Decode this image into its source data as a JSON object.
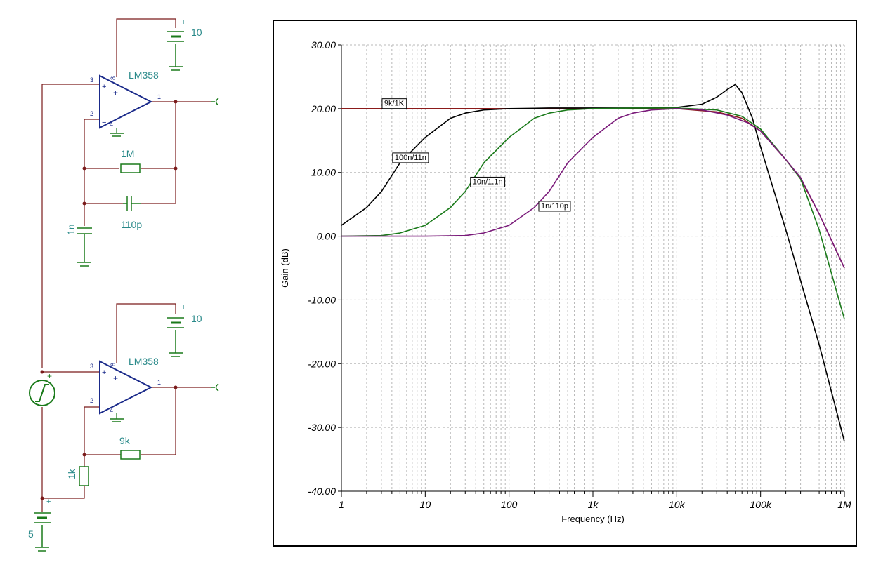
{
  "schematic": {
    "top_opamp": {
      "part": "LM358",
      "pins": [
        "3",
        "2",
        "8",
        "4",
        "1"
      ]
    },
    "top_supply": "10",
    "feedback_resistor": "1M",
    "feedback_capacitor": "110p",
    "ground_capacitor": "1n",
    "bottom_opamp": {
      "part": "LM358",
      "pins": [
        "3",
        "2",
        "8",
        "4",
        "1"
      ]
    },
    "bottom_supply": "10",
    "feedback_resistor_2": "9k",
    "ground_resistor": "1k",
    "bias_supply": "5",
    "plus_sign": "+"
  },
  "colors": {
    "wire": "#7a1a1a",
    "component": "#1a7a1a",
    "opamp": "#1a2a8a",
    "label": "#2a8a8a",
    "series_9k": "#8b1a1a",
    "series_100n": "#000000",
    "series_10n": "#1a7a1a",
    "series_1n": "#7a1a7a"
  },
  "chart_data": {
    "type": "line",
    "xlabel": "Frequency (Hz)",
    "ylabel": "Gain (dB)",
    "x_scale": "log",
    "xlim": [
      1,
      1000000
    ],
    "ylim": [
      -40,
      30
    ],
    "grid": true,
    "x_ticks": [
      1,
      10,
      100,
      1000,
      10000,
      100000,
      1000000
    ],
    "x_tick_labels": [
      "1",
      "10",
      "100",
      "1k",
      "10k",
      "100k",
      "1M"
    ],
    "y_ticks": [
      30,
      20,
      10,
      0,
      -10,
      -20,
      -30,
      -40
    ],
    "y_tick_labels": [
      "30.00",
      "20.00",
      "10.00",
      "0.00",
      "-10.00",
      "-20.00",
      "-30.00",
      "-40.00"
    ],
    "series": [
      {
        "name": "9k/1K",
        "color": "#8b1a1a",
        "x": [
          1,
          10,
          100,
          1000,
          10000,
          30000,
          60000,
          100000,
          200000,
          300000,
          500000,
          1000000
        ],
        "y": [
          20,
          20,
          20,
          20,
          20,
          19.5,
          18.5,
          16.5,
          12,
          9,
          3.5,
          -5
        ]
      },
      {
        "name": "100n/11n",
        "color": "#000000",
        "x": [
          1,
          2,
          3,
          5,
          10,
          20,
          30,
          50,
          100,
          300,
          1000,
          5000,
          10000,
          20000,
          30000,
          40000,
          50000,
          60000,
          80000,
          100000,
          200000,
          500000,
          1000000
        ],
        "y": [
          1.7,
          4.5,
          7,
          11.5,
          15.5,
          18.5,
          19.3,
          19.8,
          20,
          20.1,
          20.1,
          20.1,
          20.2,
          20.7,
          21.8,
          23,
          23.8,
          22.5,
          18.5,
          14,
          1,
          -17,
          -32.2
        ]
      },
      {
        "name": "10n/1,1n",
        "color": "#1a7a1a",
        "x": [
          1,
          3,
          5,
          10,
          20,
          30,
          50,
          100,
          200,
          300,
          500,
          1000,
          3000,
          10000,
          30000,
          60000,
          100000,
          200000,
          300000,
          500000,
          1000000
        ],
        "y": [
          0,
          0.1,
          0.5,
          1.7,
          4.5,
          7,
          11.5,
          15.5,
          18.5,
          19.3,
          19.8,
          20,
          20.1,
          20.1,
          19.8,
          18.8,
          16.8,
          12,
          9,
          1,
          -13
        ]
      },
      {
        "name": "1n/110p",
        "color": "#7a1a7a",
        "x": [
          1,
          10,
          30,
          50,
          100,
          200,
          300,
          500,
          1000,
          2000,
          3000,
          5000,
          10000,
          20000,
          40000,
          70000,
          100000,
          200000,
          300000,
          500000,
          1000000
        ],
        "y": [
          0,
          0,
          0.1,
          0.5,
          1.7,
          4.5,
          7,
          11.5,
          15.5,
          18.5,
          19.3,
          19.8,
          20,
          19.8,
          19,
          17.8,
          16.5,
          12,
          9.2,
          3.5,
          -5
        ]
      }
    ],
    "annotations": [
      {
        "text": "9k/1K",
        "x": 3,
        "y": 20.9
      },
      {
        "text": "100n/11n",
        "x": 4,
        "y": 12.4
      },
      {
        "text": "10n/1,1n",
        "x": 34,
        "y": 8.6
      },
      {
        "text": "1n/110p",
        "x": 222,
        "y": 4.8
      }
    ]
  }
}
